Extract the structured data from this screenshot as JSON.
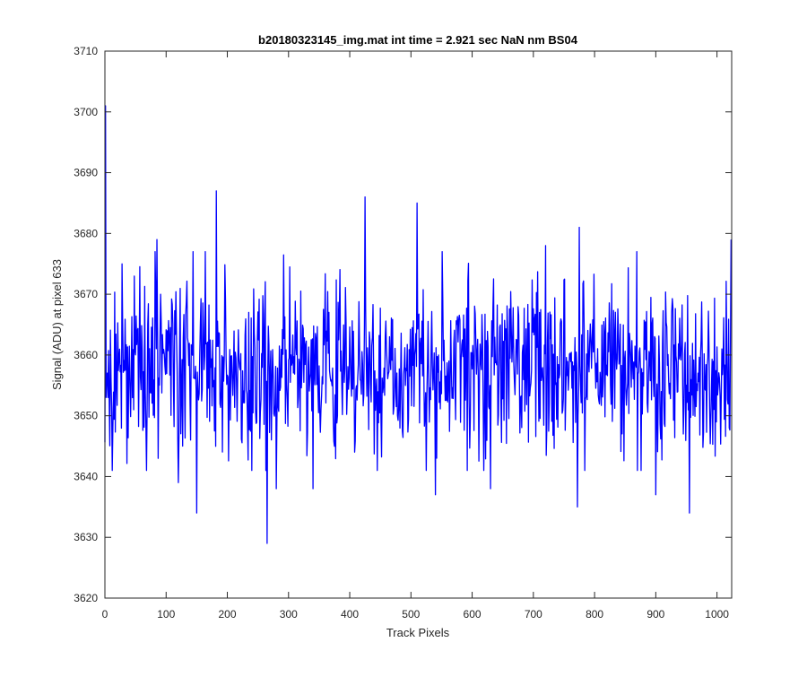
{
  "chart_data": {
    "type": "line",
    "title": "b20180323145_img.mat int time = 2.921 sec  NaN nm BS04",
    "xlabel": "Track Pixels",
    "ylabel": "Signal (ADU) at pixel 633",
    "xlim": [
      0,
      1024
    ],
    "ylim": [
      3620,
      3710
    ],
    "xticks": [
      0,
      100,
      200,
      300,
      400,
      500,
      600,
      700,
      800,
      900,
      1000
    ],
    "yticks": [
      3620,
      3630,
      3640,
      3650,
      3660,
      3670,
      3680,
      3690,
      3700,
      3710
    ],
    "grid": false,
    "series_color": "#0000ff",
    "series": [
      {
        "n_points": 1024,
        "mean": 3658,
        "noise_std": 7,
        "notable_points": [
          {
            "x": 1,
            "y": 3701
          },
          {
            "x": 5,
            "y": 3653
          },
          {
            "x": 12,
            "y": 3641
          },
          {
            "x": 28,
            "y": 3675
          },
          {
            "x": 68,
            "y": 3641
          },
          {
            "x": 85,
            "y": 3679
          },
          {
            "x": 120,
            "y": 3639
          },
          {
            "x": 150,
            "y": 3634
          },
          {
            "x": 182,
            "y": 3687
          },
          {
            "x": 265,
            "y": 3629
          },
          {
            "x": 280,
            "y": 3638
          },
          {
            "x": 340,
            "y": 3638
          },
          {
            "x": 425,
            "y": 3686
          },
          {
            "x": 445,
            "y": 3641
          },
          {
            "x": 510,
            "y": 3685
          },
          {
            "x": 540,
            "y": 3637
          },
          {
            "x": 630,
            "y": 3638
          },
          {
            "x": 720,
            "y": 3678
          },
          {
            "x": 772,
            "y": 3635
          },
          {
            "x": 775,
            "y": 3681
          },
          {
            "x": 900,
            "y": 3637
          },
          {
            "x": 955,
            "y": 3634
          },
          {
            "x": 1020,
            "y": 3648
          },
          {
            "x": 1023,
            "y": 3679
          }
        ]
      }
    ]
  }
}
